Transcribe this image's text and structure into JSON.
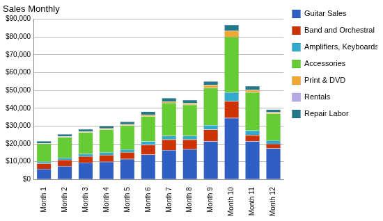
{
  "chart_data": {
    "type": "bar",
    "title": "Sales Monthly",
    "stacked": true,
    "grid": true,
    "legend": "right",
    "categories": [
      "Month 1",
      "Month 2",
      "Month 3",
      "Month 4",
      "Month 5",
      "Month 6",
      "Month 7",
      "Month 8",
      "Month 9",
      "Month 10",
      "Month 11",
      "Month 12"
    ],
    "series": [
      {
        "name": "Guitar Sales",
        "color": "#2f5fc4",
        "values": [
          6000,
          7500,
          9500,
          10000,
          11500,
          14000,
          16500,
          17000,
          21500,
          34500,
          21500,
          17500
        ]
      },
      {
        "name": "Band and Orchestral Instrument",
        "color": "#cc3300",
        "values": [
          3000,
          3500,
          3500,
          3800,
          3800,
          5500,
          6000,
          5500,
          6500,
          9500,
          3500,
          2500
        ]
      },
      {
        "name": "Amplifiers, Keyboards etc.",
        "color": "#33aacc",
        "values": [
          1000,
          1200,
          1500,
          1500,
          1600,
          2000,
          2000,
          2000,
          2500,
          5000,
          2500,
          2000
        ]
      },
      {
        "name": "Accessories",
        "color": "#66cc33",
        "values": [
          10000,
          11500,
          12000,
          12800,
          13500,
          14000,
          18500,
          17500,
          21000,
          31000,
          21500,
          15000
        ]
      },
      {
        "name": "Print & DVD",
        "color": "#f0a830",
        "values": [
          300,
          400,
          400,
          500,
          500,
          800,
          700,
          700,
          1500,
          3500,
          1200,
          700
        ]
      },
      {
        "name": "Rentals",
        "color": "#b8a8e8",
        "values": [
          100,
          100,
          100,
          100,
          100,
          100,
          100,
          100,
          100,
          100,
          100,
          100
        ]
      },
      {
        "name": "Repair Labor",
        "color": "#227788",
        "values": [
          1200,
          1300,
          1300,
          1400,
          1500,
          1800,
          2000,
          1900,
          2000,
          3200,
          2200,
          1500
        ]
      }
    ],
    "ylim": [
      0,
      90000
    ],
    "yticks": [
      {
        "value": 0,
        "label": "$0"
      },
      {
        "value": 10000,
        "label": "$10,000"
      },
      {
        "value": 20000,
        "label": "$20,000"
      },
      {
        "value": 30000,
        "label": "$30,000"
      },
      {
        "value": 40000,
        "label": "$40,000"
      },
      {
        "value": 50000,
        "label": "$50,000"
      },
      {
        "value": 60000,
        "label": "$60,000"
      },
      {
        "value": 70000,
        "label": "$70,000"
      },
      {
        "value": 80000,
        "label": "$80,000"
      },
      {
        "value": 90000,
        "label": "$90,000"
      }
    ]
  }
}
